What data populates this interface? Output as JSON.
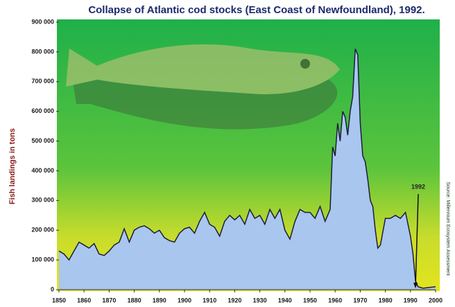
{
  "chart_data": {
    "type": "area",
    "title": "Collapse of Atlantic cod stocks (East Coast of Newfoundland), 1992.",
    "y_label": "Fish landings in tons",
    "source": "Source: Millennium Ecosystem Assessment",
    "color": "#a9c6ee",
    "line_color": "#1c1c3c",
    "xlim": [
      1850,
      2000
    ],
    "ylim": [
      0,
      900000
    ],
    "xticks": [
      1850,
      1860,
      1870,
      1880,
      1890,
      1900,
      1910,
      1920,
      1930,
      1940,
      1950,
      1960,
      1970,
      1980,
      1990,
      2000
    ],
    "yticks": [
      0,
      {
        "value": 100000,
        "label": "100 000"
      },
      {
        "value": 200000,
        "label": "200 000"
      },
      {
        "value": 300000,
        "label": "300 000"
      },
      {
        "value": 400000,
        "label": "400 000"
      },
      {
        "value": 500000,
        "label": "500 000"
      },
      {
        "value": 600000,
        "label": "600 000"
      },
      {
        "value": 700000,
        "label": "700 000"
      },
      {
        "value": 800000,
        "label": "800 000"
      },
      {
        "value": 900000,
        "label": "900 000"
      }
    ],
    "x": [
      1850,
      1852,
      1854,
      1856,
      1858,
      1860,
      1862,
      1864,
      1866,
      1868,
      1870,
      1872,
      1874,
      1876,
      1878,
      1880,
      1882,
      1884,
      1886,
      1888,
      1890,
      1892,
      1894,
      1896,
      1898,
      1900,
      1902,
      1904,
      1906,
      1908,
      1910,
      1912,
      1914,
      1916,
      1918,
      1920,
      1922,
      1924,
      1926,
      1928,
      1930,
      1932,
      1934,
      1936,
      1938,
      1940,
      1942,
      1944,
      1946,
      1948,
      1950,
      1952,
      1954,
      1956,
      1958,
      1959,
      1960,
      1961,
      1962,
      1963,
      1964,
      1965,
      1966,
      1967,
      1968,
      1969,
      1970,
      1971,
      1972,
      1973,
      1974,
      1975,
      1976,
      1977,
      1978,
      1980,
      1982,
      1984,
      1986,
      1988,
      1989,
      1990,
      1991,
      1992,
      1993,
      1995,
      2000
    ],
    "values": [
      130000,
      120000,
      100000,
      130000,
      160000,
      150000,
      140000,
      155000,
      120000,
      115000,
      130000,
      150000,
      160000,
      205000,
      160000,
      200000,
      210000,
      215000,
      205000,
      190000,
      200000,
      175000,
      165000,
      160000,
      190000,
      205000,
      210000,
      190000,
      230000,
      260000,
      220000,
      210000,
      180000,
      230000,
      250000,
      235000,
      250000,
      220000,
      270000,
      240000,
      250000,
      220000,
      270000,
      240000,
      270000,
      200000,
      170000,
      230000,
      270000,
      260000,
      260000,
      240000,
      280000,
      230000,
      270000,
      480000,
      450000,
      560000,
      500000,
      600000,
      580000,
      520000,
      600000,
      650000,
      810000,
      790000,
      560000,
      450000,
      430000,
      370000,
      300000,
      280000,
      200000,
      140000,
      150000,
      240000,
      240000,
      250000,
      240000,
      260000,
      220000,
      180000,
      120000,
      30000,
      10000,
      5000,
      10000
    ],
    "annotations": [
      {
        "text": "1992",
        "x": 1992
      }
    ]
  }
}
